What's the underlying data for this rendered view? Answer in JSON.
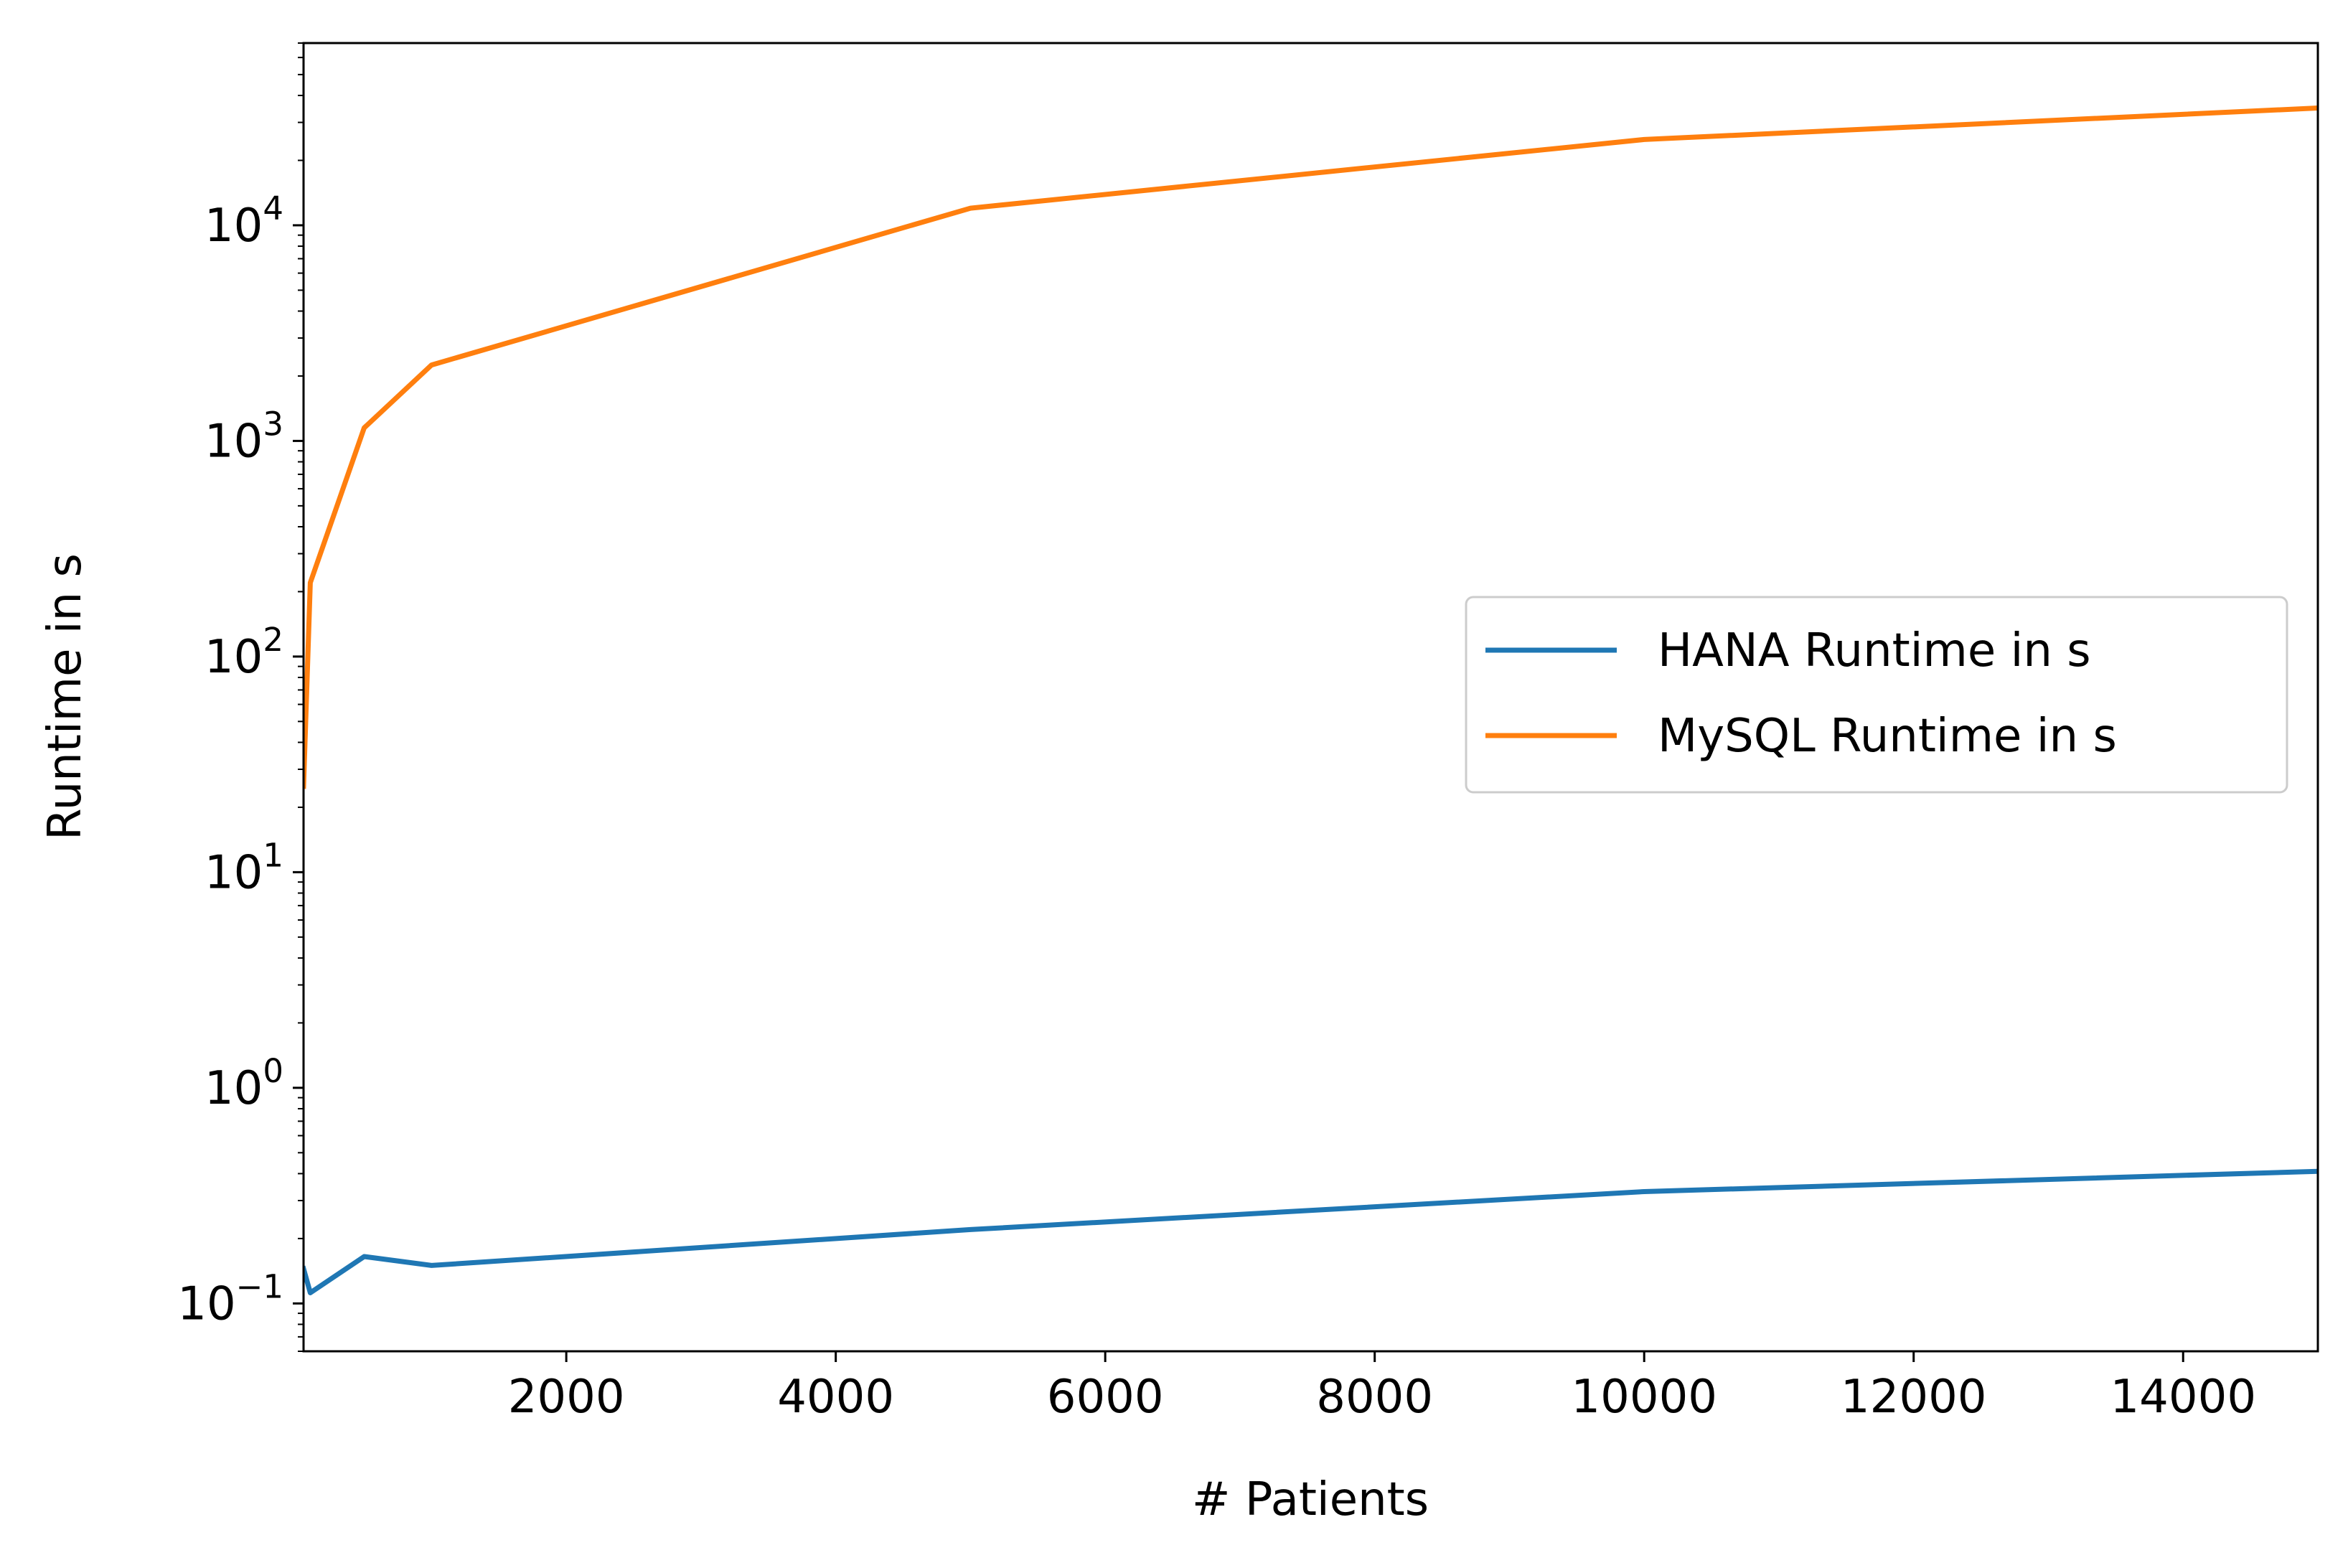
{
  "chart_data": {
    "type": "line",
    "title": "",
    "xlabel": "# Patients",
    "ylabel": "Runtime in s",
    "xscale": "linear",
    "yscale": "log",
    "xlim": [
      50,
      15000
    ],
    "ylim": [
      0.06,
      70000
    ],
    "x_ticks": [
      2000,
      4000,
      6000,
      8000,
      10000,
      12000,
      14000
    ],
    "x_tick_labels": [
      "2000",
      "4000",
      "6000",
      "8000",
      "10000",
      "12000",
      "14000"
    ],
    "y_ticks": [
      {
        "value": 0.1,
        "base": "10",
        "exp": "−1"
      },
      {
        "value": 1,
        "base": "10",
        "exp": "0"
      },
      {
        "value": 10,
        "base": "10",
        "exp": "1"
      },
      {
        "value": 100,
        "base": "10",
        "exp": "2"
      },
      {
        "value": 1000,
        "base": "10",
        "exp": "3"
      },
      {
        "value": 10000,
        "base": "10",
        "exp": "4"
      }
    ],
    "grid": false,
    "legend_position": "center-right",
    "series": [
      {
        "name": "HANA Runtime in s",
        "color": "#1f77b4",
        "x": [
          50,
          100,
          500,
          1000,
          5000,
          10000,
          15000
        ],
        "y": [
          0.145,
          0.112,
          0.165,
          0.15,
          0.22,
          0.33,
          0.41
        ]
      },
      {
        "name": "MySQL Runtime in s",
        "color": "#ff7f0e",
        "x": [
          50,
          100,
          500,
          1000,
          5000,
          10000,
          15000
        ],
        "y": [
          25,
          220,
          1150,
          2250,
          12000,
          25000,
          35000
        ]
      }
    ]
  }
}
